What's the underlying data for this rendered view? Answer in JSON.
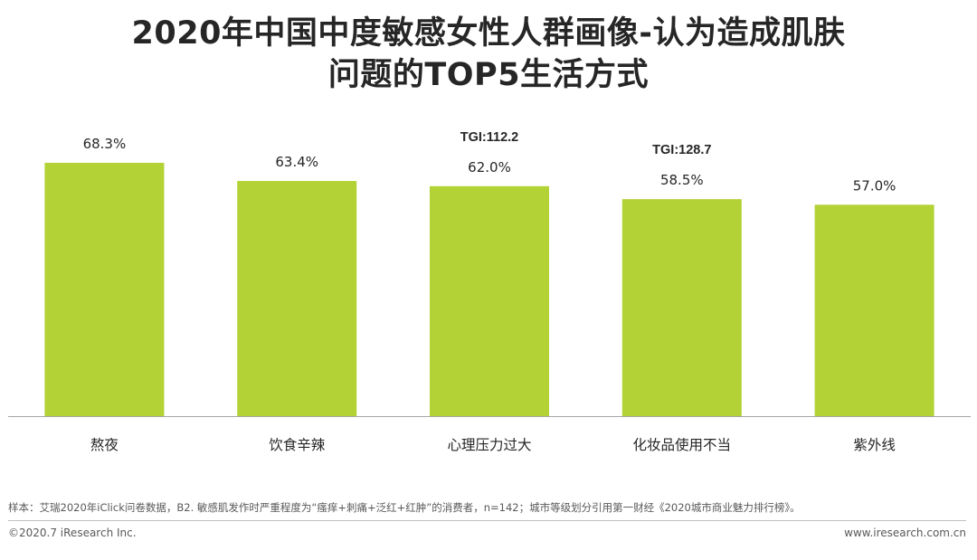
{
  "title_lines": [
    "2020年中国中度敏感女性人群画像-认为造成肌肤",
    "问题的TOP5生活方式"
  ],
  "chart_data": {
    "type": "bar",
    "categories": [
      "熬夜",
      "饮食辛辣",
      "心理压力过大",
      "化妆品使用不当",
      "紫外线"
    ],
    "values": [
      68.3,
      63.4,
      62.0,
      58.5,
      57.0
    ],
    "value_labels": [
      "68.3%",
      "63.4%",
      "62.0%",
      "58.5%",
      "57.0%"
    ],
    "annotations": [
      {
        "category": "心理压力过大",
        "text": "TGI:112.2"
      },
      {
        "category": "化妆品使用不当",
        "text": "TGI:128.7"
      }
    ],
    "ylim": [
      0,
      72
    ],
    "grid": false,
    "bar_color": "#b2d235"
  },
  "footer": {
    "note": "样本：艾瑞2020年iClick问卷数据，B2. 敏感肌发作时严重程度为“瘙痒+刺痛+泛红+红肿”的消费者，n=142；城市等级划分引用第一财经《2020城市商业魅力排行榜》。",
    "copyright": "©2020.7 iResearch Inc.",
    "website": "www.iresearch.com.cn"
  }
}
